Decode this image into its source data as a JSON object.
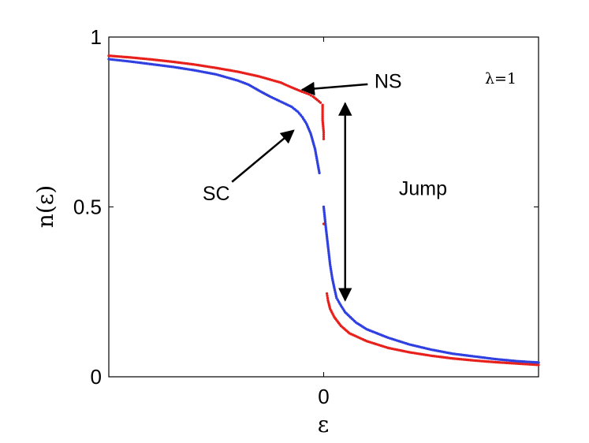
{
  "chart_data": {
    "type": "scatter",
    "title": "",
    "xlabel": "ε",
    "ylabel": "n(ε)",
    "x_ticks": [
      {
        "value": 0,
        "label": "0"
      }
    ],
    "y_ticks": [
      {
        "value": 0,
        "label": "0"
      },
      {
        "value": 0.5,
        "label": "0.5"
      },
      {
        "value": 1,
        "label": "1"
      }
    ],
    "xlim": [
      -1,
      1
    ],
    "ylim": [
      0,
      1
    ],
    "grid": false,
    "parameter_label": "λ=1",
    "series": [
      {
        "key": "normal_state",
        "color": "#e8201c",
        "points": [
          [
            -1.0,
            0.945
          ],
          [
            -0.9,
            0.94
          ],
          [
            -0.8,
            0.934
          ],
          [
            -0.7,
            0.927
          ],
          [
            -0.6,
            0.919
          ],
          [
            -0.5,
            0.909
          ],
          [
            -0.4,
            0.898
          ],
          [
            -0.3,
            0.884
          ],
          [
            -0.2,
            0.866
          ],
          [
            -0.15,
            0.852
          ],
          [
            -0.1,
            0.839
          ],
          [
            -0.07,
            0.832
          ],
          [
            -0.05,
            0.825
          ],
          [
            -0.03,
            0.815
          ],
          [
            -0.015,
            0.807
          ],
          [
            -0.005,
            0.8
          ],
          [
            -0.005,
            0.755
          ],
          [
            0.0,
            0.72
          ],
          [
            0.0,
            0.7
          ],
          [
            0.0,
            0.45
          ],
          [
            0.015,
            0.245
          ],
          [
            0.02,
            0.225
          ],
          [
            0.03,
            0.2
          ],
          [
            0.05,
            0.175
          ],
          [
            0.08,
            0.15
          ],
          [
            0.12,
            0.128
          ],
          [
            0.2,
            0.105
          ],
          [
            0.3,
            0.085
          ],
          [
            0.4,
            0.072
          ],
          [
            0.5,
            0.062
          ],
          [
            0.6,
            0.054
          ],
          [
            0.7,
            0.048
          ],
          [
            0.8,
            0.043
          ],
          [
            0.9,
            0.039
          ],
          [
            1.0,
            0.035
          ]
        ]
      },
      {
        "key": "superconducting",
        "color": "#3040e0",
        "points": [
          [
            -1.0,
            0.935
          ],
          [
            -0.9,
            0.928
          ],
          [
            -0.8,
            0.92
          ],
          [
            -0.7,
            0.912
          ],
          [
            -0.6,
            0.902
          ],
          [
            -0.5,
            0.89
          ],
          [
            -0.4,
            0.872
          ],
          [
            -0.35,
            0.86
          ],
          [
            -0.3,
            0.842
          ],
          [
            -0.25,
            0.825
          ],
          [
            -0.2,
            0.81
          ],
          [
            -0.15,
            0.795
          ],
          [
            -0.12,
            0.78
          ],
          [
            -0.1,
            0.765
          ],
          [
            -0.08,
            0.745
          ],
          [
            -0.06,
            0.715
          ],
          [
            -0.04,
            0.67
          ],
          [
            -0.02,
            0.6
          ],
          [
            0.0,
            0.5
          ],
          [
            0.01,
            0.44
          ],
          [
            0.02,
            0.385
          ],
          [
            0.03,
            0.33
          ],
          [
            0.04,
            0.29
          ],
          [
            0.05,
            0.26
          ],
          [
            0.06,
            0.232
          ],
          [
            0.08,
            0.21
          ],
          [
            0.1,
            0.19
          ],
          [
            0.15,
            0.16
          ],
          [
            0.2,
            0.14
          ],
          [
            0.3,
            0.115
          ],
          [
            0.4,
            0.095
          ],
          [
            0.5,
            0.08
          ],
          [
            0.6,
            0.068
          ],
          [
            0.7,
            0.06
          ],
          [
            0.8,
            0.052
          ],
          [
            0.9,
            0.046
          ],
          [
            1.0,
            0.042
          ]
        ]
      }
    ],
    "annotations": [
      {
        "text": "NS",
        "label_at": [
          0.3,
          0.866
        ],
        "arrow_to": [
          -0.1,
          0.845
        ]
      },
      {
        "text": "SC",
        "label_at": [
          -0.5,
          0.535
        ],
        "arrow_to": [
          -0.14,
          0.725
        ]
      },
      {
        "text": "Jump",
        "label_at": [
          0.35,
          0.55
        ],
        "double_arrow": [
          [
            0.1,
            0.805
          ],
          [
            0.1,
            0.225
          ]
        ]
      }
    ]
  }
}
